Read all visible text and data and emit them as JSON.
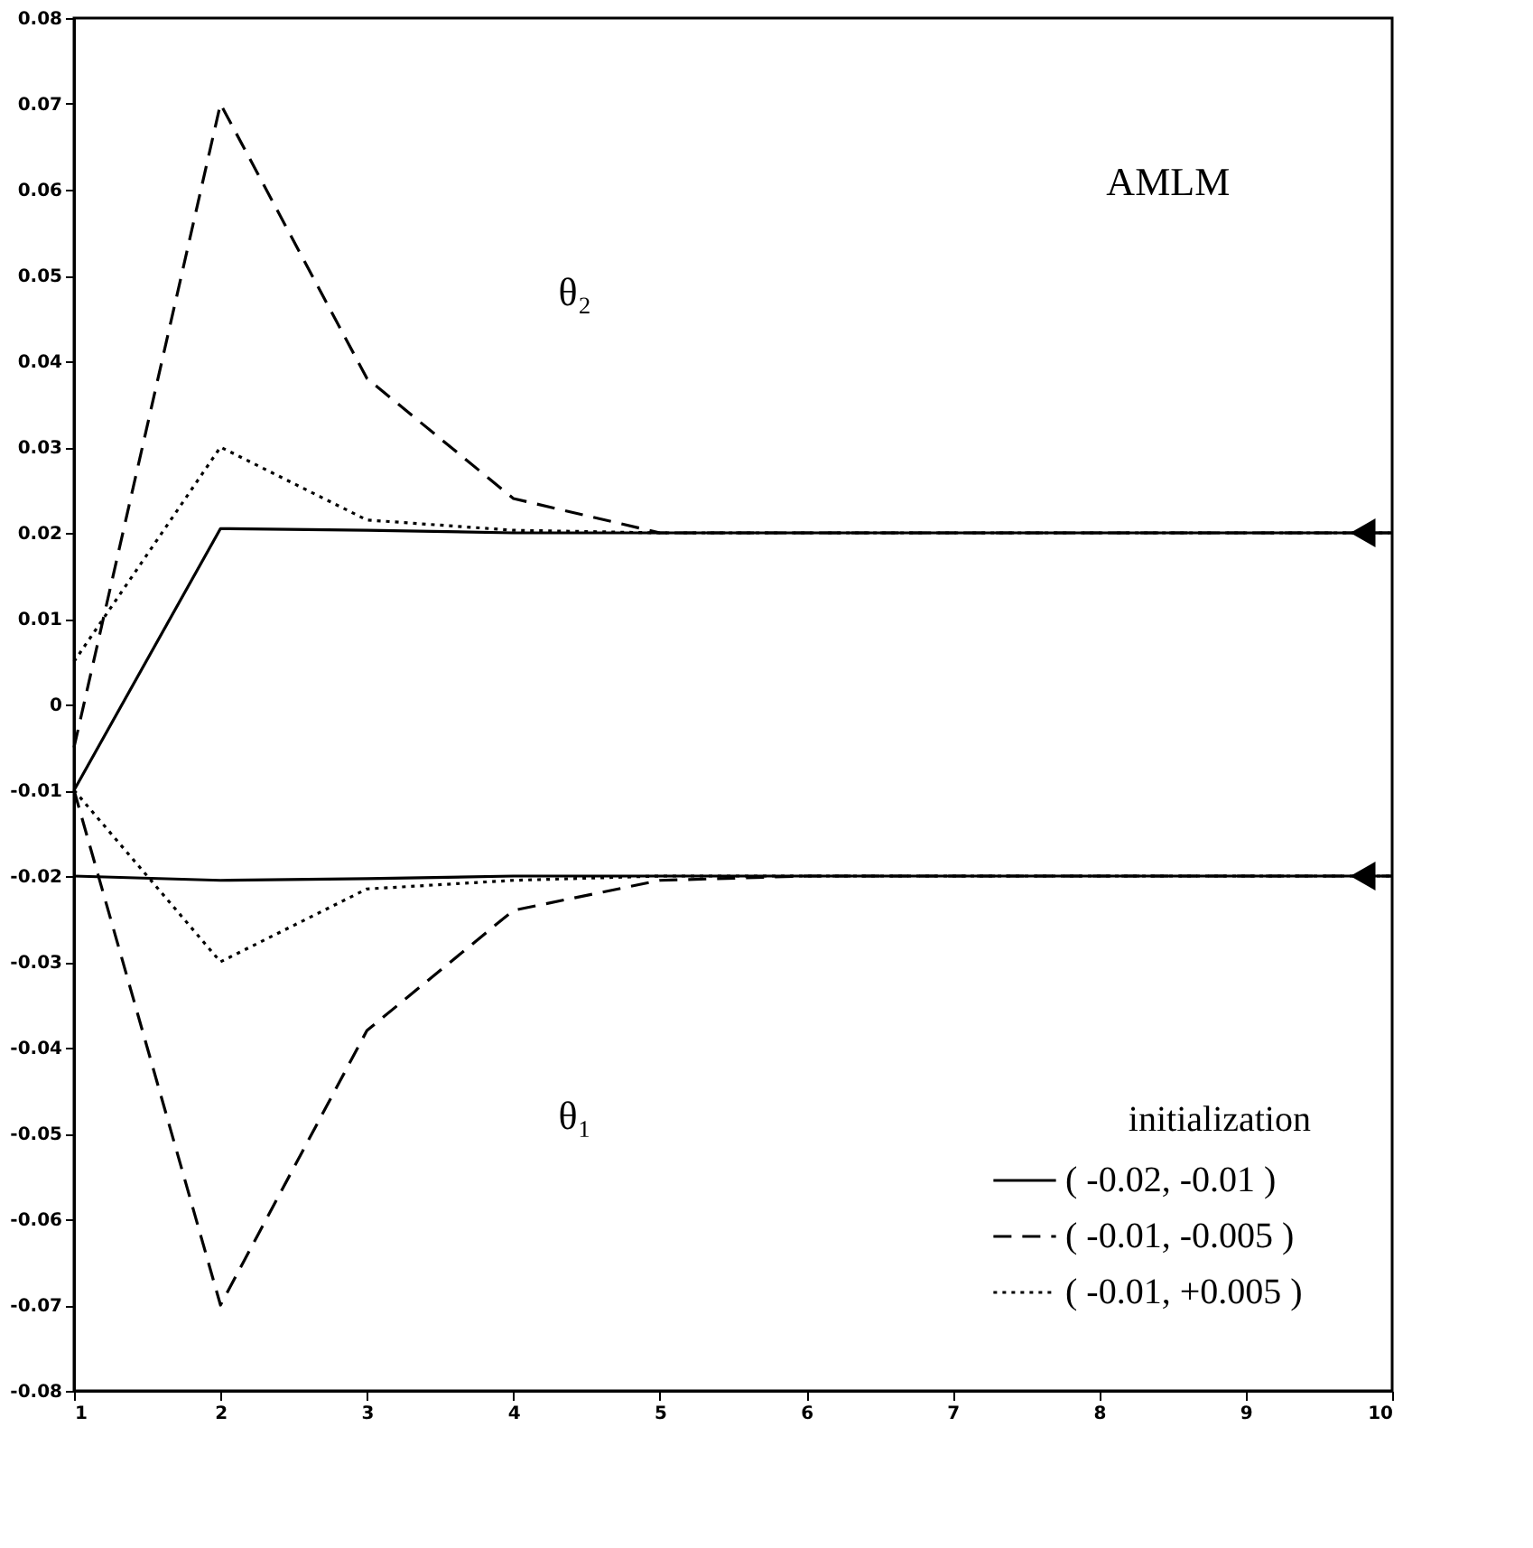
{
  "chart_data": {
    "type": "line",
    "x": [
      1,
      2,
      3,
      4,
      5,
      6,
      7,
      8,
      9,
      10
    ],
    "xlim": [
      1,
      10
    ],
    "xticks": [
      1,
      2,
      3,
      4,
      5,
      6,
      7,
      8,
      9,
      10
    ],
    "ylim": [
      -0.08,
      0.08
    ],
    "yticks": [
      -0.08,
      -0.07,
      -0.06,
      -0.05,
      -0.04,
      -0.03,
      -0.02,
      -0.01,
      0,
      0.01,
      0.02,
      0.03,
      0.04,
      0.05,
      0.06,
      0.07,
      0.08
    ],
    "grid": false,
    "legend": "bottom right",
    "legend_title": "initialization",
    "annotations": [
      "AMLM",
      "θ₂",
      "θ₁"
    ],
    "series": [
      {
        "name": "( -0.02,  -0.01 )",
        "color": "#000000",
        "line_style": "solid",
        "values": [
          -0.01,
          0.0205,
          0.0203,
          0.02,
          0.02,
          0.02,
          0.02,
          0.02,
          0.02,
          0.02
        ]
      },
      {
        "name": "( -0.01,  -0.005 )",
        "color": "#000000",
        "line_style": "dashed",
        "values": [
          -0.005,
          0.07,
          0.038,
          0.024,
          0.02,
          0.02,
          0.02,
          0.02,
          0.02,
          0.02
        ]
      },
      {
        "name": "( -0.01,  +0.005 )",
        "color": "#000000",
        "line_style": "dotted",
        "values": [
          0.005,
          0.03,
          0.0215,
          0.0203,
          0.02,
          0.02,
          0.02,
          0.02,
          0.02,
          0.02
        ]
      },
      {
        "color": "#000000",
        "line_style": "solid",
        "values": [
          -0.02,
          -0.0205,
          -0.0203,
          -0.02,
          -0.02,
          -0.02,
          -0.02,
          -0.02,
          -0.02,
          -0.02
        ]
      },
      {
        "color": "#000000",
        "line_style": "dashed",
        "values": [
          -0.01,
          -0.07,
          -0.038,
          -0.024,
          -0.0205,
          -0.02,
          -0.02,
          -0.02,
          -0.02,
          -0.02
        ]
      },
      {
        "color": "#000000",
        "line_style": "dotted",
        "values": [
          -0.01,
          -0.03,
          -0.0215,
          -0.0205,
          -0.02,
          -0.02,
          -0.02,
          -0.02,
          -0.02,
          -0.02
        ]
      },
      {
        "type": "scatter",
        "marker": "triangle",
        "color": "#000000",
        "x": [
          9.8,
          9.8
        ],
        "values": [
          0.02,
          -0.02
        ]
      }
    ]
  }
}
